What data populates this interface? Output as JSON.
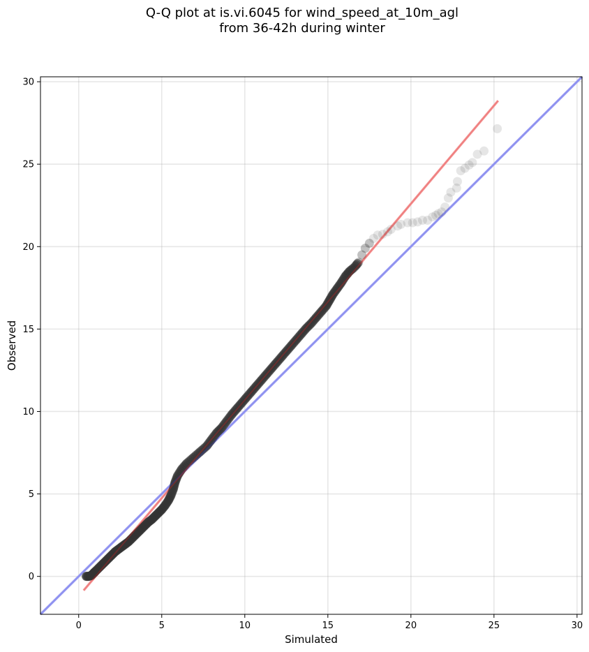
{
  "chart_data": {
    "type": "scatter",
    "title_line1": "Q-Q plot at is.vi.6045 for wind_speed_at_10m_agl",
    "title_line2": "from 36-42h during winter",
    "xlabel": "Simulated",
    "ylabel": "Observed",
    "xlim": [
      -2.3,
      30.3
    ],
    "ylim": [
      -2.3,
      30.3
    ],
    "xticks": [
      0,
      5,
      10,
      15,
      20,
      25,
      30
    ],
    "yticks": [
      0,
      5,
      10,
      15,
      20,
      25,
      30
    ],
    "grid": true,
    "reference_line": {
      "name": "1:1",
      "color": "#aaaaf6",
      "from": [
        -2.3,
        -2.3
      ],
      "to": [
        30.3,
        30.3
      ]
    },
    "fit_line": {
      "color": "#f6a6a6",
      "from": [
        0.3,
        -0.85
      ],
      "to": [
        25.25,
        28.85
      ]
    },
    "marker_color": "#333333",
    "series": [
      {
        "points": [
          [
            0.45,
            0.0
          ],
          [
            0.6,
            0.0
          ],
          [
            0.75,
            0.05
          ],
          [
            0.9,
            0.2
          ],
          [
            1.0,
            0.3
          ],
          [
            1.2,
            0.5
          ],
          [
            1.4,
            0.7
          ],
          [
            1.6,
            0.9
          ],
          [
            1.8,
            1.1
          ],
          [
            2.0,
            1.3
          ],
          [
            2.2,
            1.5
          ],
          [
            2.4,
            1.65
          ],
          [
            2.6,
            1.8
          ],
          [
            2.8,
            1.95
          ],
          [
            3.0,
            2.1
          ],
          [
            3.2,
            2.3
          ],
          [
            3.4,
            2.5
          ],
          [
            3.6,
            2.7
          ],
          [
            3.8,
            2.9
          ],
          [
            4.0,
            3.1
          ],
          [
            4.2,
            3.3
          ],
          [
            4.4,
            3.45
          ],
          [
            4.6,
            3.65
          ],
          [
            4.8,
            3.85
          ],
          [
            5.0,
            4.05
          ],
          [
            5.2,
            4.3
          ],
          [
            5.4,
            4.6
          ],
          [
            5.55,
            4.9
          ],
          [
            5.7,
            5.3
          ],
          [
            5.8,
            5.7
          ],
          [
            5.95,
            6.1
          ],
          [
            6.2,
            6.5
          ],
          [
            6.5,
            6.85
          ],
          [
            6.9,
            7.2
          ],
          [
            7.3,
            7.55
          ],
          [
            7.7,
            7.9
          ],
          [
            8.0,
            8.3
          ],
          [
            8.3,
            8.7
          ],
          [
            8.6,
            9.0
          ],
          [
            8.9,
            9.4
          ],
          [
            9.2,
            9.8
          ],
          [
            9.5,
            10.15
          ],
          [
            9.8,
            10.5
          ],
          [
            10.1,
            10.85
          ],
          [
            10.4,
            11.2
          ],
          [
            10.7,
            11.55
          ],
          [
            11.0,
            11.9
          ],
          [
            11.3,
            12.25
          ],
          [
            11.6,
            12.6
          ],
          [
            11.9,
            12.95
          ],
          [
            12.2,
            13.3
          ],
          [
            12.5,
            13.65
          ],
          [
            12.8,
            14.0
          ],
          [
            13.1,
            14.35
          ],
          [
            13.4,
            14.7
          ],
          [
            13.7,
            15.05
          ],
          [
            14.0,
            15.35
          ],
          [
            14.3,
            15.7
          ],
          [
            14.6,
            16.05
          ],
          [
            14.9,
            16.4
          ],
          [
            15.1,
            16.75
          ],
          [
            15.3,
            17.1
          ],
          [
            15.55,
            17.45
          ],
          [
            15.8,
            17.8
          ],
          [
            16.05,
            18.2
          ],
          [
            16.3,
            18.5
          ],
          [
            16.6,
            18.75
          ],
          [
            16.85,
            19.05
          ],
          [
            17.05,
            19.5
          ],
          [
            17.25,
            19.9
          ],
          [
            17.5,
            20.2
          ],
          [
            17.75,
            20.5
          ],
          [
            18.0,
            20.7
          ],
          [
            18.3,
            20.75
          ],
          [
            18.6,
            20.9
          ],
          [
            18.8,
            21.05
          ],
          [
            19.2,
            21.25
          ],
          [
            19.4,
            21.35
          ],
          [
            19.8,
            21.45
          ],
          [
            20.1,
            21.45
          ],
          [
            20.4,
            21.5
          ],
          [
            20.7,
            21.6
          ],
          [
            21.0,
            21.6
          ],
          [
            21.3,
            21.8
          ],
          [
            21.5,
            21.9
          ],
          [
            21.65,
            22.0
          ],
          [
            21.85,
            22.1
          ],
          [
            22.05,
            22.4
          ],
          [
            22.25,
            22.95
          ],
          [
            22.4,
            23.3
          ],
          [
            22.75,
            23.55
          ],
          [
            22.8,
            23.95
          ],
          [
            23.0,
            24.6
          ],
          [
            23.25,
            24.75
          ],
          [
            23.5,
            24.95
          ],
          [
            23.7,
            25.1
          ],
          [
            24.0,
            25.6
          ],
          [
            24.4,
            25.8
          ],
          [
            25.2,
            27.15
          ]
        ]
      }
    ]
  }
}
